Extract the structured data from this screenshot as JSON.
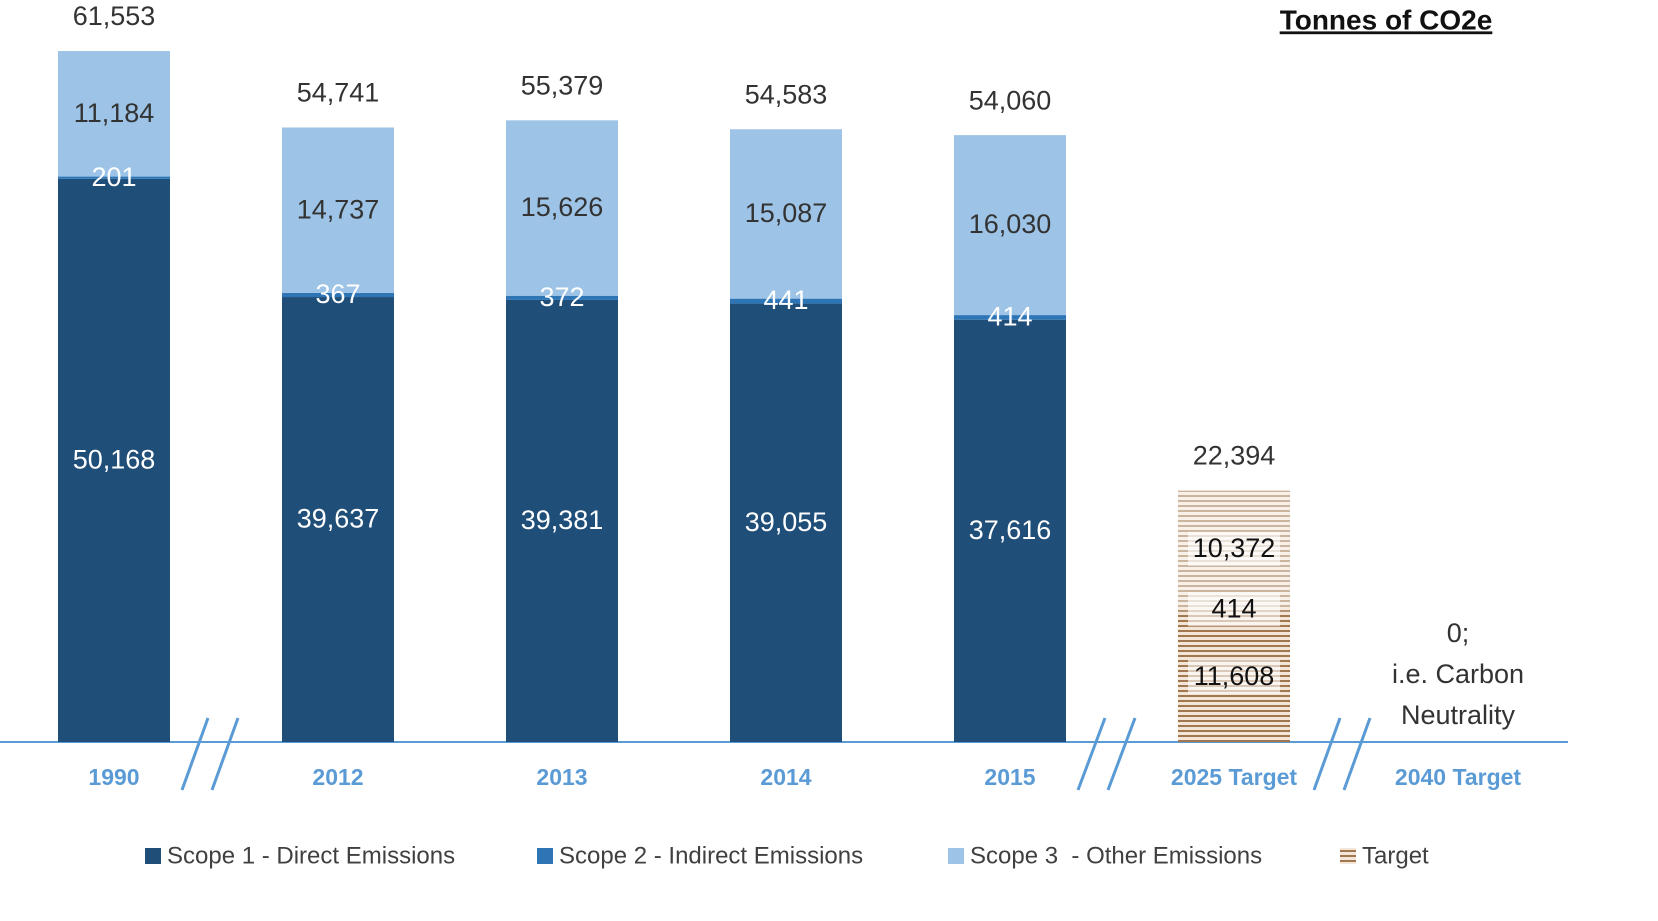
{
  "chart_data": {
    "type": "stacked_bar",
    "title": "Tonnes of CO2e",
    "categories": [
      "1990",
      "2012",
      "2013",
      "2014",
      "2015",
      "2025 Target",
      "2040 Target"
    ],
    "series": [
      {
        "name": "Scope 1 - Direct Emissions",
        "color": "#1f4e79",
        "label_color": "#ffffff",
        "values": [
          50168,
          39637,
          39381,
          39055,
          37616,
          11608,
          null
        ],
        "value_labels": [
          "50,168",
          "39,637",
          "39,381",
          "39,055",
          "37,616",
          "11,608",
          null
        ]
      },
      {
        "name": "Scope 2 - Indirect Emissions",
        "color": "#2e75b6",
        "label_color": "#ffffff",
        "values": [
          201,
          367,
          372,
          441,
          414,
          414,
          null
        ],
        "value_labels": [
          "201",
          "367",
          "372",
          "441",
          "414",
          "414",
          null
        ]
      },
      {
        "name": "Scope 3  - Other Emissions",
        "color": "#9dc3e6",
        "label_color": "#333333",
        "values": [
          11184,
          14737,
          15626,
          15087,
          16030,
          10372,
          null
        ],
        "value_labels": [
          "11,184",
          "14,737",
          "15,626",
          "15,087",
          "16,030",
          "10,372",
          null
        ]
      },
      {
        "name": "Target",
        "color": "#a0774f",
        "values": [
          null,
          null,
          null,
          null,
          null,
          null,
          null
        ]
      }
    ],
    "target": [
      false,
      false,
      false,
      false,
      false,
      true,
      false
    ],
    "totals": [
      61553,
      54741,
      55379,
      54583,
      54060,
      22394,
      0
    ],
    "totals_labels": [
      "61,553",
      "54,741",
      "55,379",
      "54,583",
      "54,060",
      "22,394",
      "0;"
    ],
    "annotation": [
      "i.e. Carbon",
      "Neutrality"
    ],
    "ylim": [
      0,
      62000
    ],
    "legend": "bottom"
  }
}
